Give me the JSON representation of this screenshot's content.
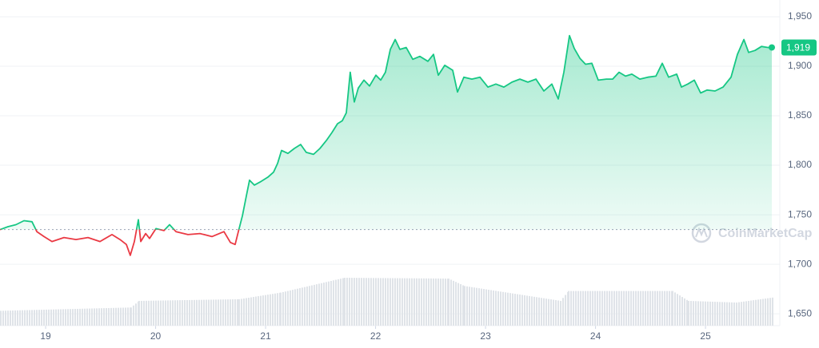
{
  "chart_data": {
    "type": "line",
    "x": [
      18.585,
      18.658,
      18.73,
      18.803,
      18.876,
      18.92,
      18.985,
      19.058,
      19.167,
      19.276,
      19.385,
      19.494,
      19.603,
      19.676,
      19.734,
      19.77,
      19.807,
      19.843,
      19.865,
      19.909,
      19.945,
      20.003,
      20.076,
      20.127,
      20.185,
      20.294,
      20.403,
      20.512,
      20.621,
      20.68,
      20.723,
      20.752,
      20.789,
      20.825,
      20.854,
      20.898,
      20.949,
      21.021,
      21.072,
      21.109,
      21.145,
      21.203,
      21.261,
      21.319,
      21.37,
      21.436,
      21.494,
      21.552,
      21.603,
      21.654,
      21.698,
      21.734,
      21.77,
      21.807,
      21.843,
      21.894,
      21.945,
      22.003,
      22.047,
      22.09,
      22.134,
      22.178,
      22.221,
      22.279,
      22.338,
      22.403,
      22.476,
      22.527,
      22.57,
      22.629,
      22.701,
      22.745,
      22.803,
      22.876,
      22.949,
      23.021,
      23.094,
      23.167,
      23.24,
      23.312,
      23.385,
      23.458,
      23.53,
      23.603,
      23.661,
      23.712,
      23.763,
      23.807,
      23.858,
      23.909,
      23.967,
      24.025,
      24.098,
      24.156,
      24.214,
      24.273,
      24.33,
      24.403,
      24.476,
      24.549,
      24.607,
      24.665,
      24.738,
      24.781,
      24.839,
      24.898,
      24.956,
      25.014,
      25.087,
      25.16,
      25.232,
      25.29,
      25.349,
      25.392,
      25.45,
      25.509,
      25.567,
      25.603
    ],
    "values": [
      1735,
      1738,
      1740,
      1744,
      1743,
      1733,
      1728,
      1723,
      1727,
      1725,
      1727,
      1723,
      1730,
      1725,
      1720,
      1709,
      1723,
      1745,
      1723,
      1731,
      1726,
      1736,
      1734,
      1740,
      1733,
      1730,
      1731,
      1728,
      1733,
      1722,
      1720,
      1733,
      1749,
      1769,
      1785,
      1780,
      1783,
      1788,
      1793,
      1802,
      1815,
      1812,
      1817,
      1821,
      1813,
      1811,
      1817,
      1825,
      1833,
      1842,
      1845,
      1853,
      1894,
      1864,
      1878,
      1886,
      1880,
      1891,
      1886,
      1894,
      1917,
      1927,
      1917,
      1919,
      1907,
      1910,
      1905,
      1912,
      1891,
      1901,
      1896,
      1874,
      1889,
      1887,
      1889,
      1879,
      1882,
      1879,
      1884,
      1887,
      1884,
      1887,
      1875,
      1882,
      1867,
      1894,
      1931,
      1918,
      1908,
      1902,
      1903,
      1886,
      1887,
      1887,
      1894,
      1890,
      1892,
      1887,
      1889,
      1890,
      1903,
      1889,
      1892,
      1879,
      1882,
      1886,
      1873,
      1876,
      1875,
      1879,
      1889,
      1912,
      1927,
      1914,
      1916,
      1920,
      1919,
      1919
    ],
    "color": "#16c784",
    "down_color": "#ea3943",
    "reference_line": 1735,
    "current_price": {
      "value": 1919,
      "label": "1,919"
    },
    "volume": {
      "x": [
        18.585,
        19.77,
        19.843,
        20.752,
        21.13,
        21.712,
        22.658,
        22.803,
        23.676,
        23.749,
        24.694,
        24.839,
        25.276,
        25.603
      ],
      "values": [
        18,
        22,
        30,
        32,
        40,
        58,
        57,
        48,
        30,
        42,
        42,
        30,
        28,
        34
      ],
      "color": "#dfe3e8"
    },
    "xlim": [
      18.585,
      25.603
    ],
    "xticks": [
      19,
      20,
      21,
      22,
      23,
      24,
      25
    ],
    "ylim": [
      1638,
      1960
    ],
    "yticks": [
      {
        "value": 1650,
        "label": "1,650"
      },
      {
        "value": 1700,
        "label": "1,700"
      },
      {
        "value": 1750,
        "label": "1,750"
      },
      {
        "value": 1800,
        "label": "1,800"
      },
      {
        "value": 1850,
        "label": "1,850"
      },
      {
        "value": 1900,
        "label": "1,900"
      },
      {
        "value": 1950,
        "label": "1,950"
      }
    ],
    "grid": true,
    "watermark": "CoinMarketCap"
  }
}
